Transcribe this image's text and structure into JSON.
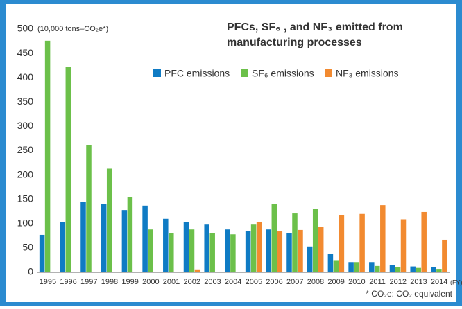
{
  "chart_data": {
    "type": "bar",
    "title": [
      "PFCs, SF₆ , and NF₃ emitted from",
      "manufacturing processes"
    ],
    "y_unit": "(10,000 tons–CO₂e*)",
    "x_unit": "(FY)",
    "footnote": "* CO₂e: CO₂ equivalent",
    "categories": [
      "1995",
      "1996",
      "1997",
      "1998",
      "1999",
      "2000",
      "2001",
      "2002",
      "2003",
      "2004",
      "2005",
      "2006",
      "2007",
      "2008",
      "2009",
      "2010",
      "2011",
      "2012",
      "2013",
      "2014"
    ],
    "series": [
      {
        "name": "PFC emissions",
        "color": "#0f7bc4",
        "values": [
          77,
          103,
          144,
          141,
          128,
          137,
          110,
          103,
          98,
          88,
          85,
          88,
          80,
          53,
          38,
          21,
          21,
          15,
          12,
          11
        ]
      },
      {
        "name": "SF₆ emissions",
        "color": "#6cc04a",
        "values": [
          476,
          423,
          261,
          213,
          155,
          88,
          81,
          88,
          81,
          78,
          98,
          140,
          121,
          131,
          25,
          21,
          13,
          11,
          9,
          7
        ]
      },
      {
        "name": "NF₃ emissions",
        "color": "#f28a30",
        "values": [
          1,
          1,
          1,
          1,
          1,
          1,
          1,
          6,
          1,
          1,
          104,
          84,
          87,
          93,
          118,
          120,
          138,
          109,
          124,
          67
        ]
      }
    ],
    "ylim": [
      0,
      500
    ],
    "yticks": [
      0,
      50,
      100,
      150,
      200,
      250,
      300,
      350,
      400,
      450,
      500
    ],
    "grid": false
  }
}
